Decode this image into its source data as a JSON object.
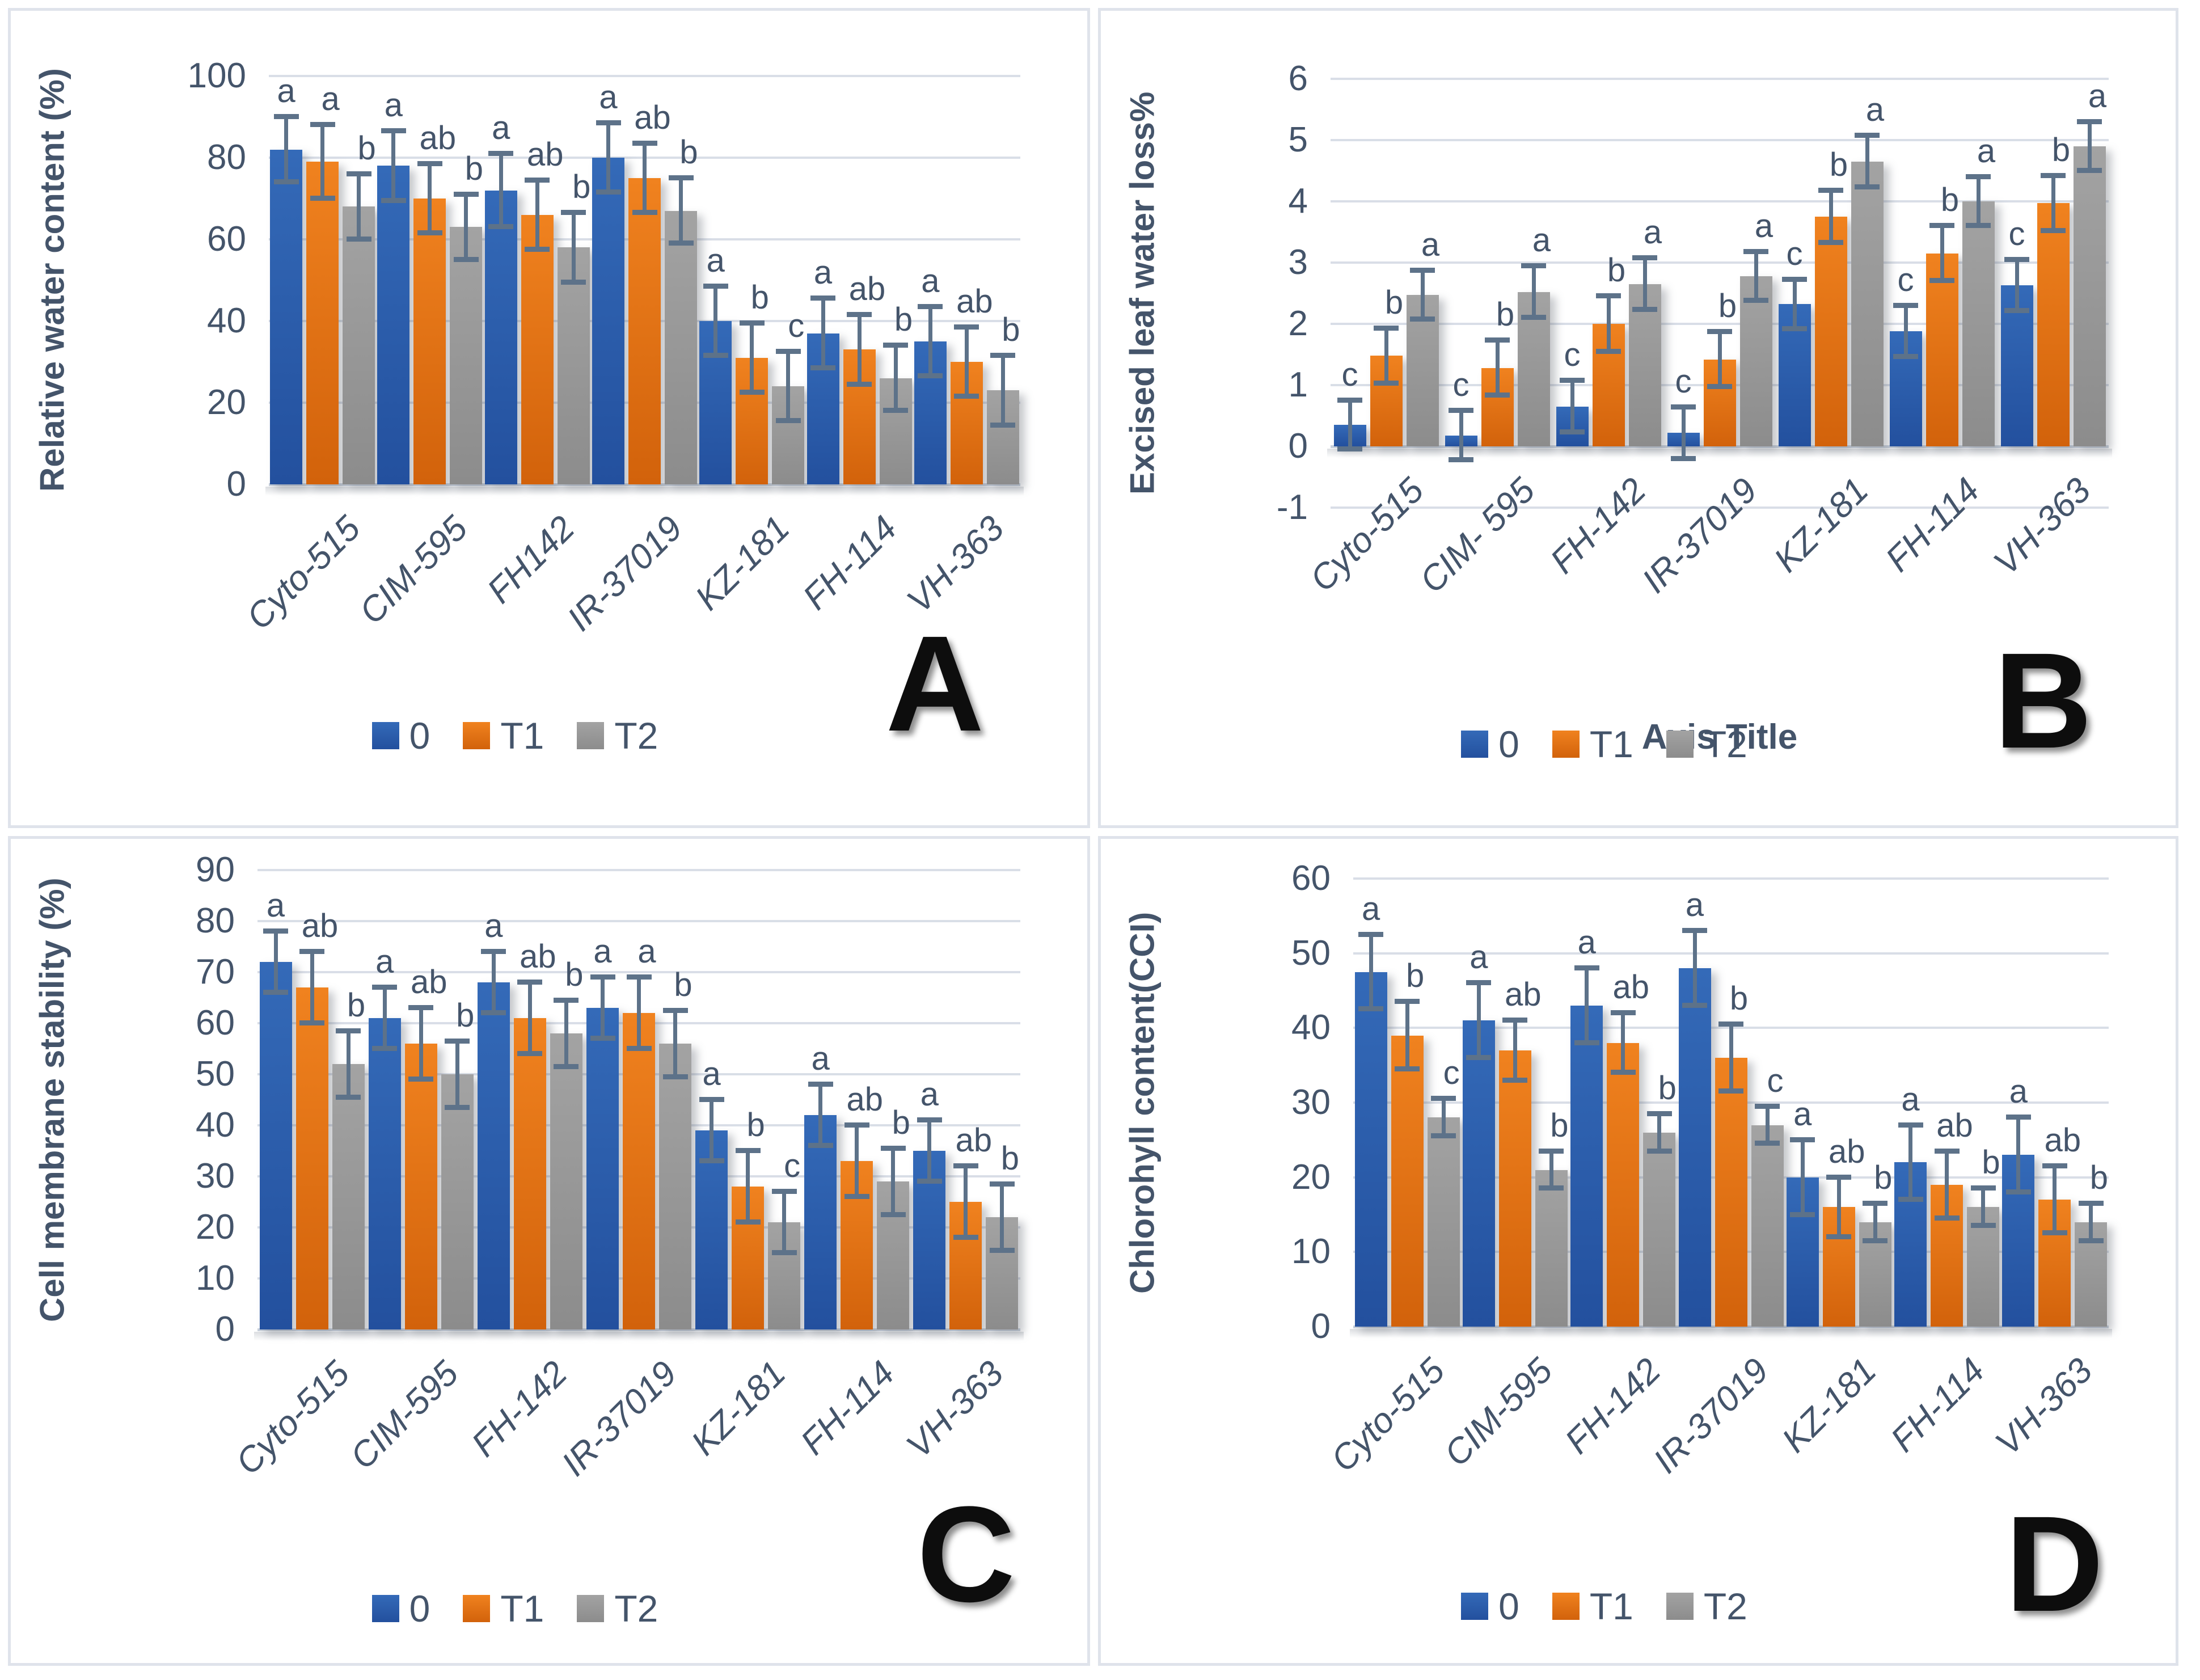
{
  "figure": {
    "description": "Four-panel bar chart figure comparing cotton genotypes under treatments 0, T1, T2",
    "legend_labels": [
      "0",
      "T1",
      "T2"
    ]
  },
  "colors": {
    "blue": [
      "#346AB8",
      "#23509E"
    ],
    "orange": [
      "#F0821F",
      "#D2620B"
    ],
    "gray": [
      "#A3A3A3",
      "#8C8C8C"
    ],
    "error_bar": "#5D7289",
    "axis_text": "#44546A",
    "gridline": "#D9DEE7",
    "baseline": "#C9D1DC",
    "panel_letter": "#0d0d0d"
  },
  "chart_data": [
    {
      "panel": "A",
      "type": "bar",
      "y_title": "Relative water content (%)",
      "x_title": "",
      "ylim": [
        0,
        100
      ],
      "ytick_step": 20,
      "grid": true,
      "legend_position": "bottom",
      "categories": [
        "Cyto-515",
        "CIM-595",
        "FH142",
        "IR-37019",
        "KZ-181",
        "FH-114",
        "VH-363"
      ],
      "series": [
        {
          "name": "0",
          "color_key": "blue",
          "values": [
            82,
            78,
            72,
            80,
            40,
            37,
            35
          ],
          "errors": [
            8,
            8.5,
            9,
            8.5,
            8.5,
            8.5,
            8.5
          ],
          "letters": [
            "a",
            "a",
            "a",
            "a",
            "a",
            "a",
            "a"
          ]
        },
        {
          "name": "T1",
          "color_key": "orange",
          "values": [
            79,
            70,
            66,
            75,
            31,
            33,
            30
          ],
          "errors": [
            9,
            8.5,
            8.5,
            8.5,
            8.5,
            8.5,
            8.5
          ],
          "letters": [
            "a",
            "ab",
            "ab",
            "ab",
            "b",
            "ab",
            "ab"
          ]
        },
        {
          "name": "T2",
          "color_key": "gray",
          "values": [
            68,
            63,
            58,
            67,
            24,
            26,
            23
          ],
          "errors": [
            8,
            8,
            8.5,
            8,
            8.5,
            8,
            8.5
          ],
          "letters": [
            "b",
            "b",
            "b",
            "b",
            "c",
            "b",
            "b"
          ]
        }
      ]
    },
    {
      "panel": "B",
      "type": "bar",
      "y_title": "Excised leaf water loss%",
      "x_title": "Axis Title",
      "ylim": [
        -1,
        6
      ],
      "ytick_step": 1,
      "grid": true,
      "legend_position": "bottom",
      "categories": [
        "Cyto-515",
        "CIM- 595",
        "FH-142",
        "IR-37019",
        "KZ-181",
        "FH-114",
        "VH-363"
      ],
      "series": [
        {
          "name": "0",
          "color_key": "blue",
          "values": [
            0.35,
            0.18,
            0.65,
            0.22,
            2.32,
            1.88,
            2.63
          ],
          "errors": [
            0.4,
            0.4,
            0.42,
            0.42,
            0.4,
            0.42,
            0.42
          ],
          "letters": [
            "c",
            "c",
            "c",
            "c",
            "c",
            "c",
            "c"
          ]
        },
        {
          "name": "T1",
          "color_key": "orange",
          "values": [
            1.48,
            1.28,
            2.0,
            1.42,
            3.75,
            3.15,
            3.97
          ],
          "errors": [
            0.45,
            0.45,
            0.45,
            0.45,
            0.43,
            0.45,
            0.45
          ],
          "letters": [
            "b",
            "b",
            "b",
            "b",
            "b",
            "b",
            "b"
          ]
        },
        {
          "name": "T2",
          "color_key": "gray",
          "values": [
            2.47,
            2.52,
            2.65,
            2.78,
            4.65,
            4.0,
            4.9
          ],
          "errors": [
            0.4,
            0.42,
            0.42,
            0.4,
            0.42,
            0.4,
            0.4
          ],
          "letters": [
            "a",
            "a",
            "a",
            "a",
            "a",
            "a",
            "a"
          ]
        }
      ]
    },
    {
      "panel": "C",
      "type": "bar",
      "y_title": "Cell membrane stability (%)",
      "x_title": "",
      "ylim": [
        0,
        90
      ],
      "ytick_step": 10,
      "grid": true,
      "legend_position": "bottom",
      "categories": [
        "Cyto-515",
        "CIM-595",
        "FH-142",
        "IR-37019",
        "KZ-181",
        "FH-114",
        "VH-363"
      ],
      "series": [
        {
          "name": "0",
          "color_key": "blue",
          "values": [
            72,
            61,
            68,
            63,
            39,
            42,
            35
          ],
          "errors": [
            6,
            6,
            6,
            6,
            6,
            6,
            6
          ],
          "letters": [
            "a",
            "a",
            "a",
            "a",
            "a",
            "a",
            "a"
          ]
        },
        {
          "name": "T1",
          "color_key": "orange",
          "values": [
            67,
            56,
            61,
            62,
            28,
            33,
            25
          ],
          "errors": [
            7,
            7,
            7,
            7,
            7,
            7,
            7
          ],
          "letters": [
            "ab",
            "ab",
            "ab",
            "a",
            "b",
            "ab",
            "ab"
          ]
        },
        {
          "name": "T2",
          "color_key": "gray",
          "values": [
            52,
            50,
            58,
            56,
            21,
            29,
            22
          ],
          "errors": [
            6.5,
            6.5,
            6.5,
            6.5,
            6,
            6.5,
            6.5
          ],
          "letters": [
            "b",
            "b",
            "b",
            "b",
            "c",
            "b",
            "b"
          ]
        }
      ]
    },
    {
      "panel": "D",
      "type": "bar",
      "y_title": "Chlorohyll content(CCI)",
      "x_title": "",
      "ylim": [
        0,
        60
      ],
      "ytick_step": 10,
      "grid": true,
      "legend_position": "bottom",
      "categories": [
        "Cyto-515",
        "CIM-595",
        "FH-142",
        "IR-37019",
        "KZ-181",
        "FH-114",
        "VH-363"
      ],
      "series": [
        {
          "name": "0",
          "color_key": "blue",
          "values": [
            47.5,
            41,
            43,
            48,
            20,
            22,
            23
          ],
          "errors": [
            5,
            5,
            5,
            5,
            5,
            5,
            5
          ],
          "letters": [
            "a",
            "a",
            "a",
            "a",
            "a",
            "a",
            "a"
          ]
        },
        {
          "name": "T1",
          "color_key": "orange",
          "values": [
            39,
            37,
            38,
            36,
            16,
            19,
            17
          ],
          "errors": [
            4.5,
            4,
            4,
            4.5,
            4,
            4.5,
            4.5
          ],
          "letters": [
            "b",
            "ab",
            "ab",
            "b",
            "ab",
            "ab",
            "ab"
          ]
        },
        {
          "name": "T2",
          "color_key": "gray",
          "values": [
            28,
            21,
            26,
            27,
            14,
            16,
            14
          ],
          "errors": [
            2.5,
            2.5,
            2.5,
            2.5,
            2.5,
            2.5,
            2.5
          ],
          "letters": [
            "c",
            "b",
            "b",
            "c",
            "b",
            "b",
            "b"
          ]
        }
      ]
    }
  ]
}
